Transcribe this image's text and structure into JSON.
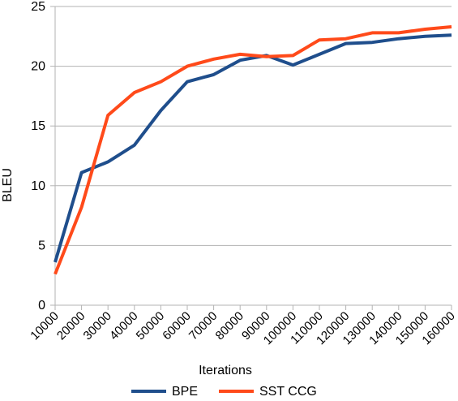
{
  "chart_data": {
    "type": "line",
    "xlabel": "Iterations",
    "ylabel": "BLEU",
    "ylim": [
      0,
      25
    ],
    "yticks": [
      0,
      5,
      10,
      15,
      20,
      25
    ],
    "categories": [
      "10000",
      "20000",
      "30000",
      "40000",
      "50000",
      "60000",
      "70000",
      "80000",
      "90000",
      "100000",
      "110000",
      "120000",
      "130000",
      "140000",
      "150000",
      "160000"
    ],
    "grid": "horizontal",
    "legend_position": "bottom",
    "series": [
      {
        "name": "BPE",
        "color": "#1f4e8c",
        "values": [
          3.6,
          11.1,
          12.0,
          13.4,
          16.3,
          18.7,
          19.3,
          20.5,
          20.9,
          20.1,
          21.0,
          21.9,
          22.0,
          22.3,
          22.5,
          22.6
        ]
      },
      {
        "name": "SST CCG",
        "color": "#ff4a1a",
        "values": [
          2.6,
          8.2,
          15.9,
          17.8,
          18.7,
          20.0,
          20.6,
          21.0,
          20.8,
          20.9,
          22.2,
          22.3,
          22.8,
          22.8,
          23.1,
          23.3
        ]
      }
    ]
  }
}
